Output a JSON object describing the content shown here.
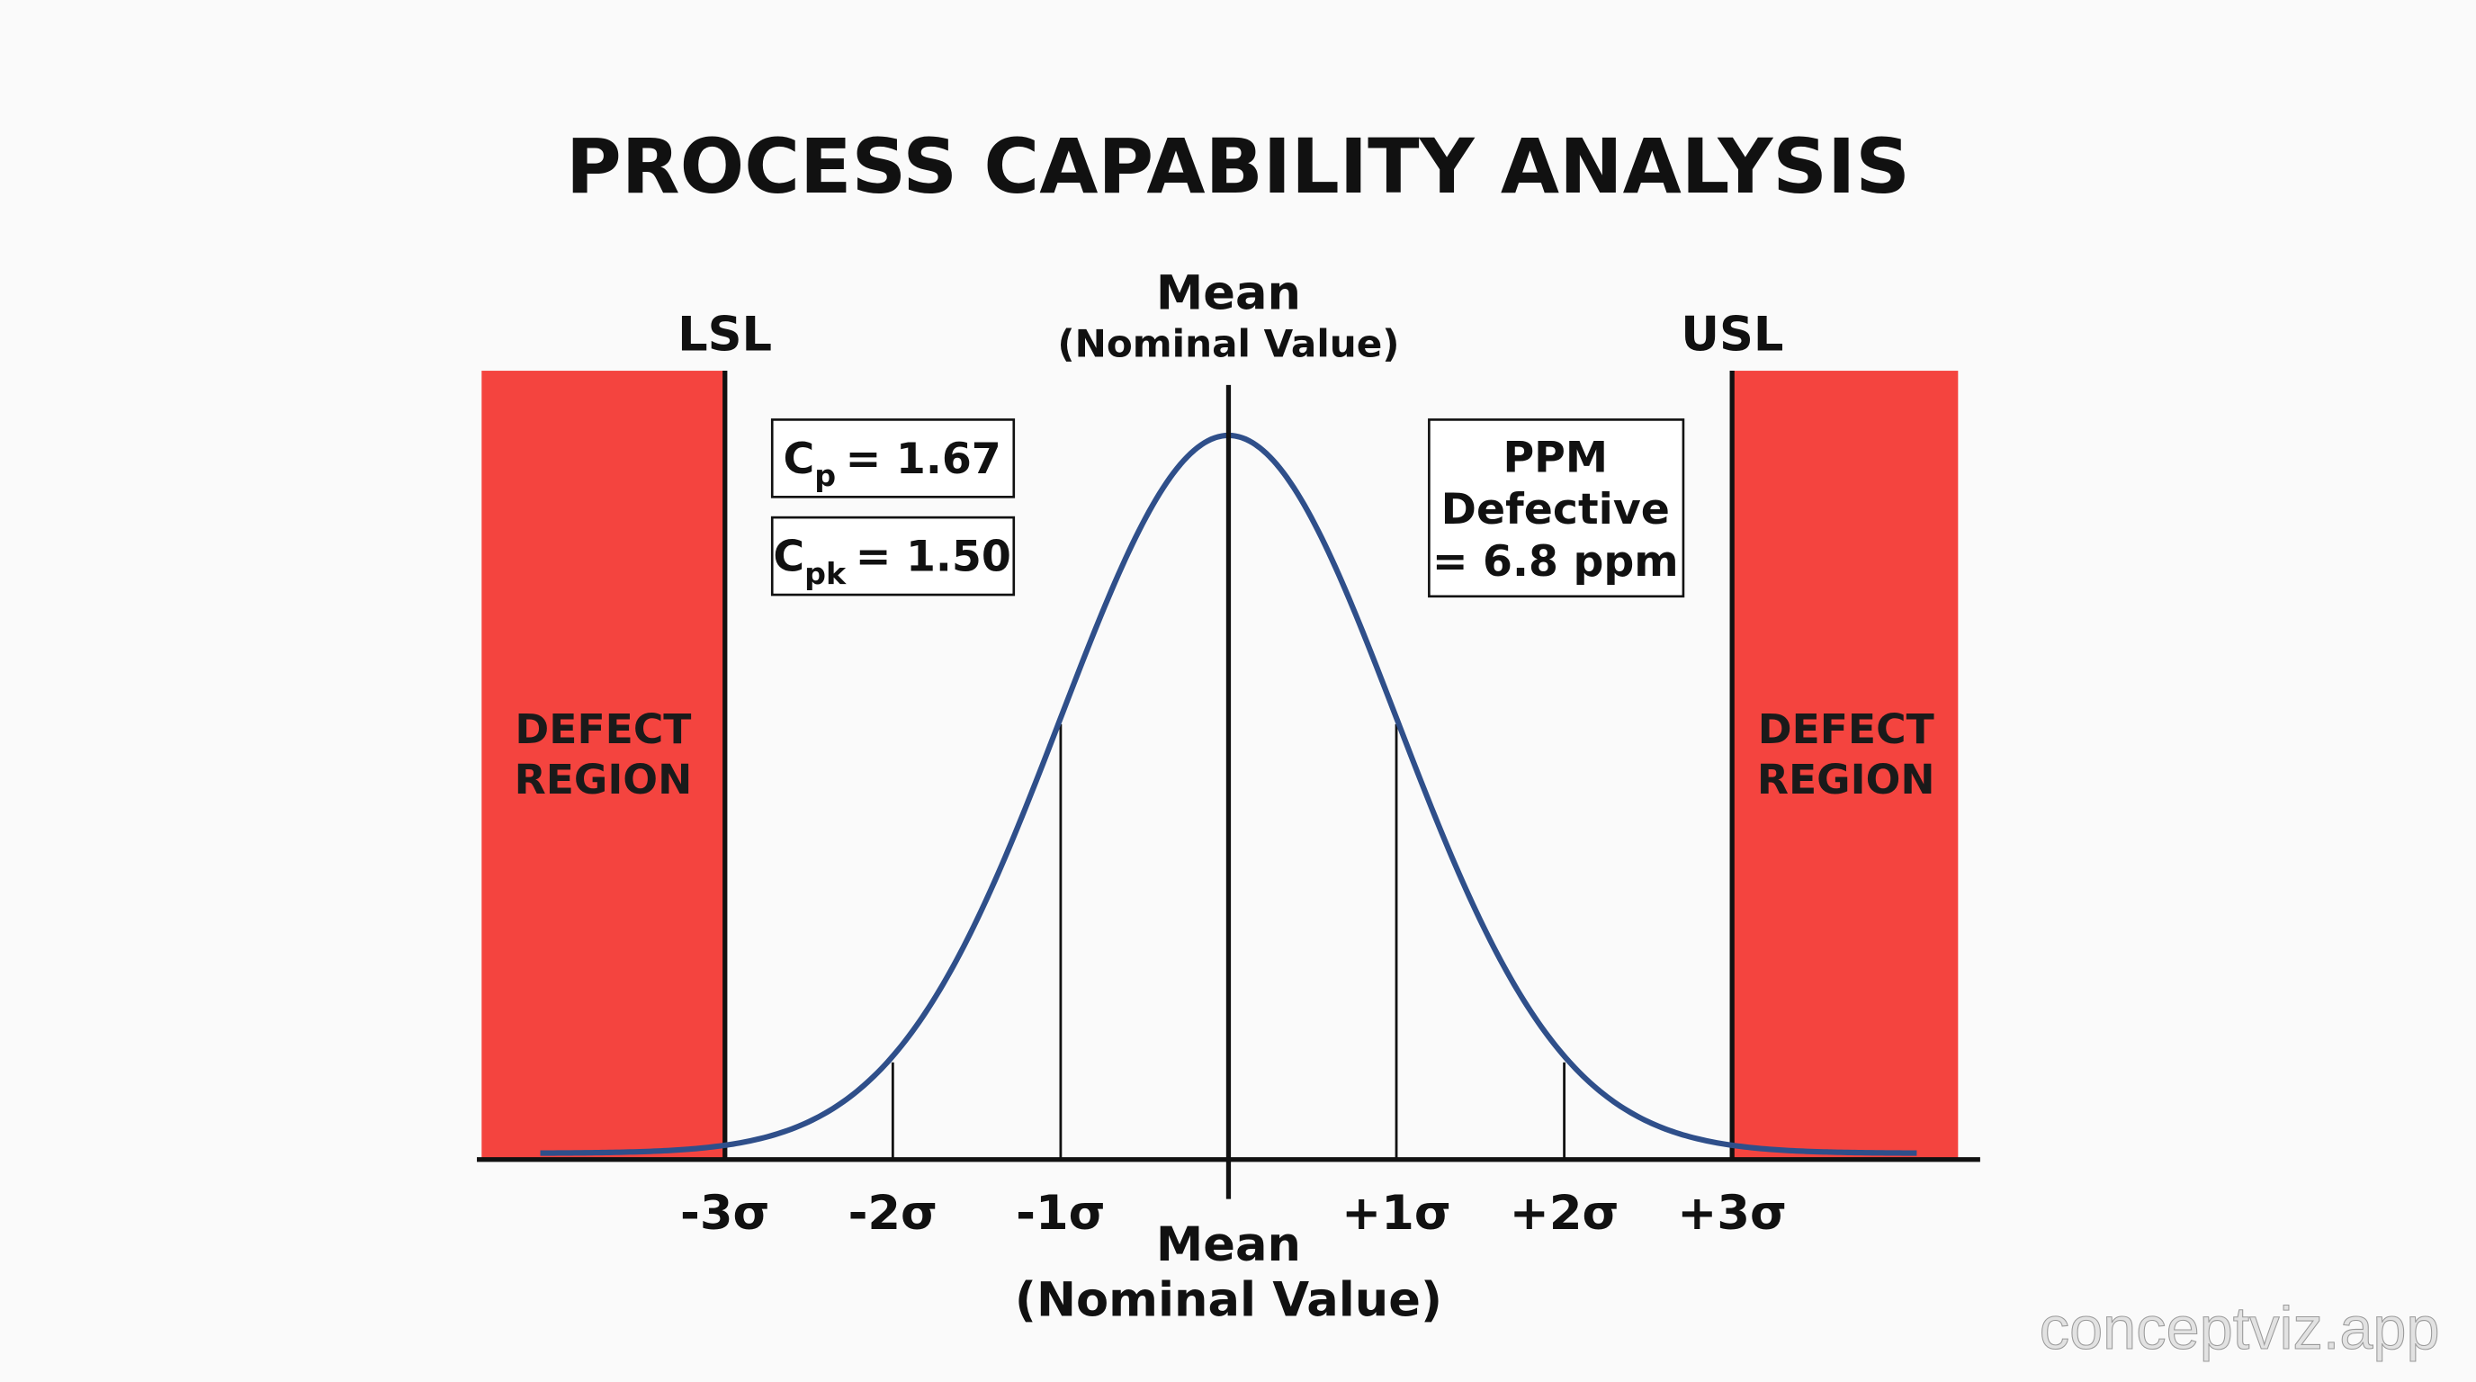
{
  "title": "PROCESS CAPABILITY ANALYSIS",
  "watermark": "conceptviz.app",
  "chart_data": {
    "type": "line",
    "distribution": "normal",
    "mean": 0,
    "sigma": 1,
    "x_range": [
      -4.1,
      4.1
    ],
    "x_ticks": [
      {
        "value": -3,
        "label": "-3σ"
      },
      {
        "value": -2,
        "label": "-2σ"
      },
      {
        "value": -1,
        "label": "-1σ"
      },
      {
        "value": 1,
        "label": "+1σ"
      },
      {
        "value": 2,
        "label": "+2σ"
      },
      {
        "value": 3,
        "label": "+3σ"
      }
    ],
    "sigma_lines": [
      -2,
      -1,
      1,
      2
    ],
    "lsl": {
      "value": -3,
      "label": "LSL"
    },
    "usl": {
      "value": 3,
      "label": "USL"
    },
    "mean_line": {
      "label": "Mean",
      "sublabel": "(Nominal Value)"
    },
    "xlabel": {
      "line1": "Mean",
      "line2": "(Nominal Value)"
    },
    "defect_region_label": {
      "line1": "DEFECT",
      "line2": "REGION"
    },
    "annotations": {
      "cp": {
        "symbol": "C",
        "subscript": "p",
        "text": "= 1.67",
        "value": 1.67
      },
      "cpk": {
        "symbol": "C",
        "subscript": "pk",
        "text": "= 1.50",
        "value": 1.5
      },
      "ppm": {
        "line1": "PPM",
        "line2": "Defective",
        "line3": "= 6.8 ppm",
        "value": 6.8
      }
    },
    "colors": {
      "curve": "#2f4f8a",
      "defect_region": "#f4443f",
      "axis": "#111111"
    },
    "grid": false
  }
}
